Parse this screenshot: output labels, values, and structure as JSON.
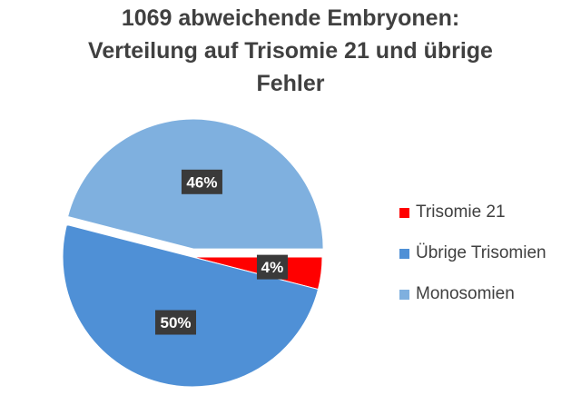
{
  "chart_data": {
    "type": "pie",
    "title": [
      "1069 abweichende Embryonen:",
      "Verteilung auf Trisomie 21 und übrige",
      "Fehler"
    ],
    "slices": [
      {
        "label": "Trisomie 21",
        "value": 4,
        "data_label": "4%",
        "color": "#ff0000"
      },
      {
        "label": "Übrige Trisomien",
        "value": 50,
        "data_label": "50%",
        "color": "#4f90d6"
      },
      {
        "label": "Monosomien",
        "value": 46,
        "data_label": "46%",
        "color": "#7fb0df"
      }
    ],
    "exploded_slice": "Monosomien",
    "legend_position": "right"
  }
}
